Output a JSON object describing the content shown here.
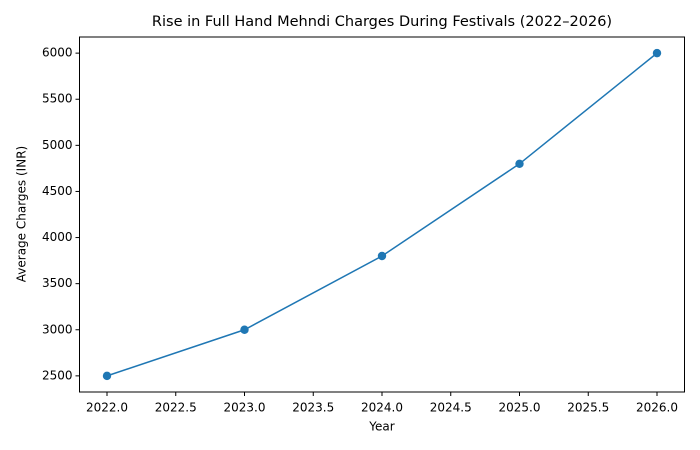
{
  "chart_data": {
    "type": "line",
    "title": "Rise in Full Hand Mehndi Charges During Festivals (2022–2026)",
    "x_label": "Year",
    "y_label": "Average Charges (INR)",
    "x": [
      2022,
      2023,
      2024,
      2025,
      2026
    ],
    "series": [
      {
        "name": "Average Charges",
        "color": "#1f77b4",
        "values": [
          2500,
          3000,
          3800,
          4800,
          6000
        ]
      }
    ],
    "xlim": [
      2021.8,
      2026.2
    ],
    "xticks": [
      {
        "value": 2022,
        "label": "2022.0"
      },
      {
        "value": 2022.5,
        "label": "2022.5"
      },
      {
        "value": 2023,
        "label": "2023.0"
      },
      {
        "value": 2023.5,
        "label": "2023.5"
      },
      {
        "value": 2024,
        "label": "2024.0"
      },
      {
        "value": 2024.5,
        "label": "2024.5"
      },
      {
        "value": 2025,
        "label": "2025.0"
      },
      {
        "value": 2025.5,
        "label": "2025.5"
      },
      {
        "value": 2026,
        "label": "2026.0"
      }
    ],
    "ylim": [
      2325,
      6175
    ],
    "yticks": [
      2500,
      3000,
      3500,
      4000,
      4500,
      5000,
      5500,
      6000
    ],
    "grid": false
  }
}
